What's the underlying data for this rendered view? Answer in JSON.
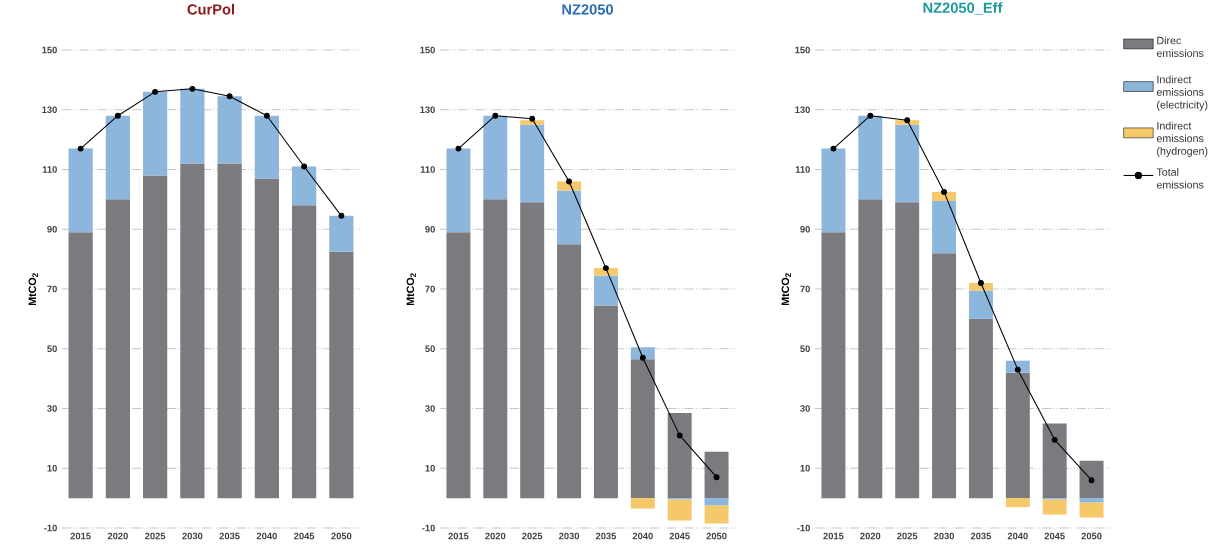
{
  "chart_data": [
    {
      "type": "bar",
      "title": "CurPol",
      "ylabel": "MtCO$_{2}$",
      "categories": [
        "2015",
        "2020",
        "2025",
        "2030",
        "2035",
        "2040",
        "2045",
        "2050"
      ],
      "stacked": true,
      "grid": "y",
      "ylim": [
        -10,
        150
      ],
      "yticks": [
        -10,
        10,
        30,
        50,
        70,
        90,
        110,
        130,
        150
      ],
      "series": [
        {
          "color": "#7b7a7e",
          "values": [
            89,
            100,
            108,
            112,
            112,
            107,
            98,
            82.5
          ]
        },
        {
          "color": "#8db6dc",
          "values": [
            28,
            28,
            28,
            25,
            22.5,
            21,
            13,
            12
          ]
        },
        {
          "type": "line",
          "color": "#000000",
          "marker": "circle",
          "line_style": "solid",
          "values": [
            117,
            128,
            136,
            137,
            134.5,
            128,
            111,
            94.5
          ]
        }
      ]
    },
    {
      "type": "bar",
      "title": "NZ2050",
      "ylabel": "MtCO$_{2}$",
      "categories": [
        "2015",
        "2020",
        "2025",
        "2030",
        "2035",
        "2040",
        "2045",
        "2050"
      ],
      "stacked": true,
      "grid": "y",
      "ylim": [
        -10,
        150
      ],
      "yticks": [
        -10,
        10,
        30,
        50,
        70,
        90,
        110,
        130,
        150
      ],
      "series": [
        {
          "color": "#7b7a7e",
          "values": [
            89,
            100,
            99,
            85,
            64.5,
            46.5,
            28.5,
            15.5
          ]
        },
        {
          "color": "#8db6dc",
          "values": [
            28,
            28,
            26,
            18,
            10,
            4,
            -0.5,
            -2.5
          ]
        },
        {
          "color": "#f5c96a",
          "values": [
            0,
            0,
            1.5,
            3,
            2.5,
            -3.5,
            -7,
            -6
          ]
        },
        {
          "type": "line",
          "color": "#000000",
          "marker": "circle",
          "line_style": "solid",
          "values": [
            117,
            128,
            127,
            106,
            77,
            47,
            21,
            7
          ]
        }
      ]
    },
    {
      "type": "bar",
      "title": "NZ2050_Eff",
      "ylabel": "MtCO$_{2}$",
      "categories": [
        "2015",
        "2020",
        "2025",
        "2030",
        "2035",
        "2040",
        "2045",
        "2050"
      ],
      "stacked": true,
      "grid": "y",
      "legend": "right",
      "ylim": [
        -10,
        150
      ],
      "yticks": [
        -10,
        10,
        30,
        50,
        70,
        90,
        110,
        130,
        150
      ],
      "series": [
        {
          "name": "Direc emissions",
          "color": "#7b7a7e",
          "values": [
            89,
            100,
            99,
            82,
            60,
            42,
            25,
            12.5
          ]
        },
        {
          "name": "Indirect emissions (electricity)",
          "color": "#8db6dc",
          "values": [
            28,
            28,
            26,
            17.5,
            9.5,
            4,
            -0.5,
            -1.5
          ]
        },
        {
          "name": "Indirect emissions (hydrogen)",
          "color": "#f5c96a",
          "values": [
            0,
            0,
            1.5,
            3,
            2.5,
            -3,
            -5,
            -5
          ]
        },
        {
          "type": "line",
          "name": "Total emissions",
          "color": "#000000",
          "marker": "circle",
          "line_style": "solid",
          "values": [
            117,
            128,
            126.5,
            102.5,
            72,
            43,
            19.5,
            6
          ]
        }
      ]
    }
  ]
}
